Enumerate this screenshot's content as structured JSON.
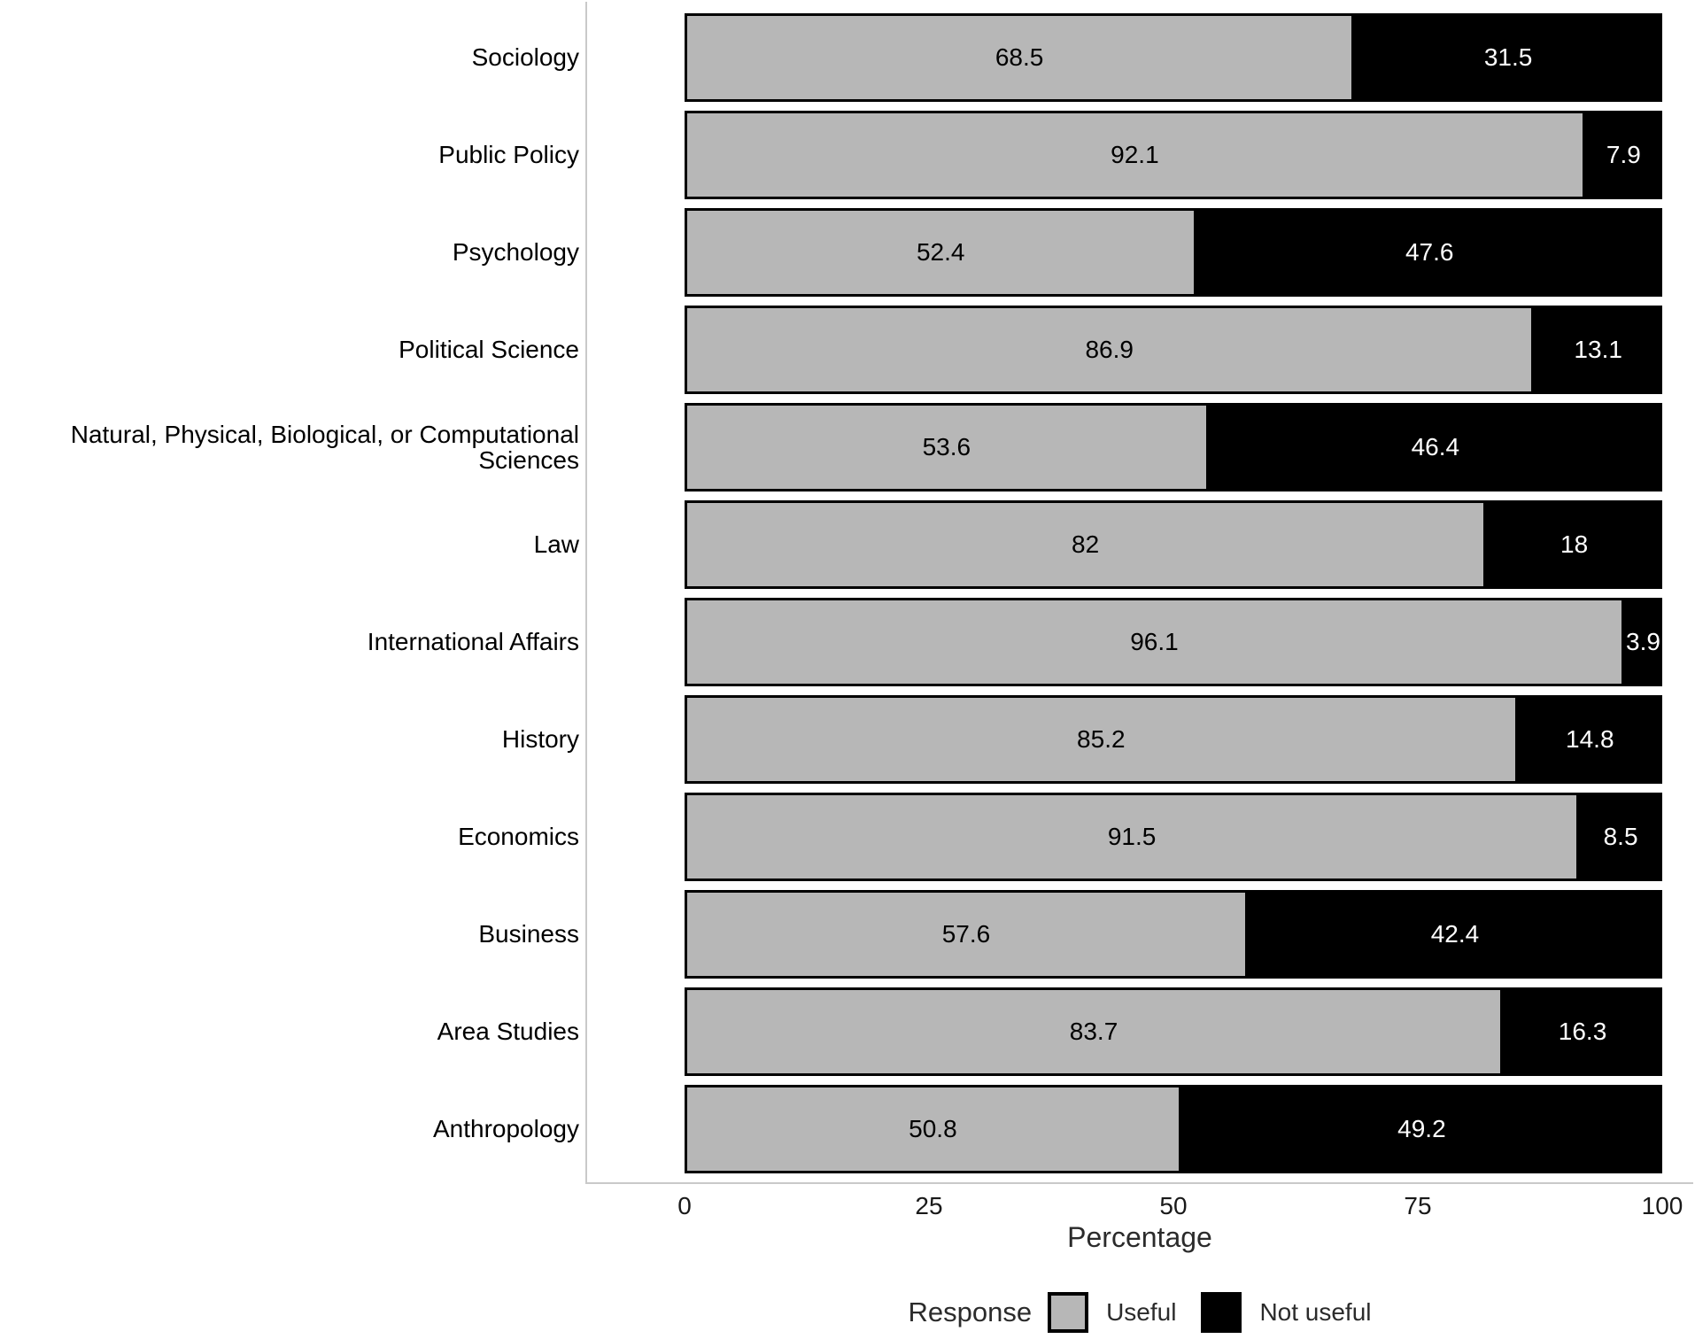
{
  "figure": {
    "background_color": "#ffffff",
    "axis_line_color": "#c9c9c9",
    "bar_border_color": "#000000",
    "tick_label_color": "#191919"
  },
  "chart_data": {
    "type": "bar",
    "orientation": "horizontal",
    "stacked": true,
    "title": "",
    "xlabel": "Percentage",
    "ylabel": "",
    "xlim": [
      0,
      100
    ],
    "x_ticks": [
      0,
      25,
      50,
      75,
      100
    ],
    "grid": false,
    "legend_position": "bottom",
    "legend_title": "Response",
    "categories": [
      "Sociology",
      "Public Policy",
      "Psychology",
      "Political Science",
      "Natural, Physical, Biological, or Computational Sciences",
      "Law",
      "International Affairs",
      "History",
      "Economics",
      "Business",
      "Area Studies",
      "Anthropology"
    ],
    "series": [
      {
        "name": "Useful",
        "color": "#b7b7b7",
        "label_color": "#000000",
        "values": [
          68.5,
          92.1,
          52.4,
          86.9,
          53.6,
          82,
          96.1,
          85.2,
          91.5,
          57.6,
          83.7,
          50.8
        ]
      },
      {
        "name": "Not useful",
        "color": "#000000",
        "label_color": "#ffffff",
        "values": [
          31.5,
          7.9,
          47.6,
          13.1,
          46.4,
          18,
          3.9,
          14.8,
          8.5,
          42.4,
          16.3,
          49.2
        ]
      }
    ]
  }
}
